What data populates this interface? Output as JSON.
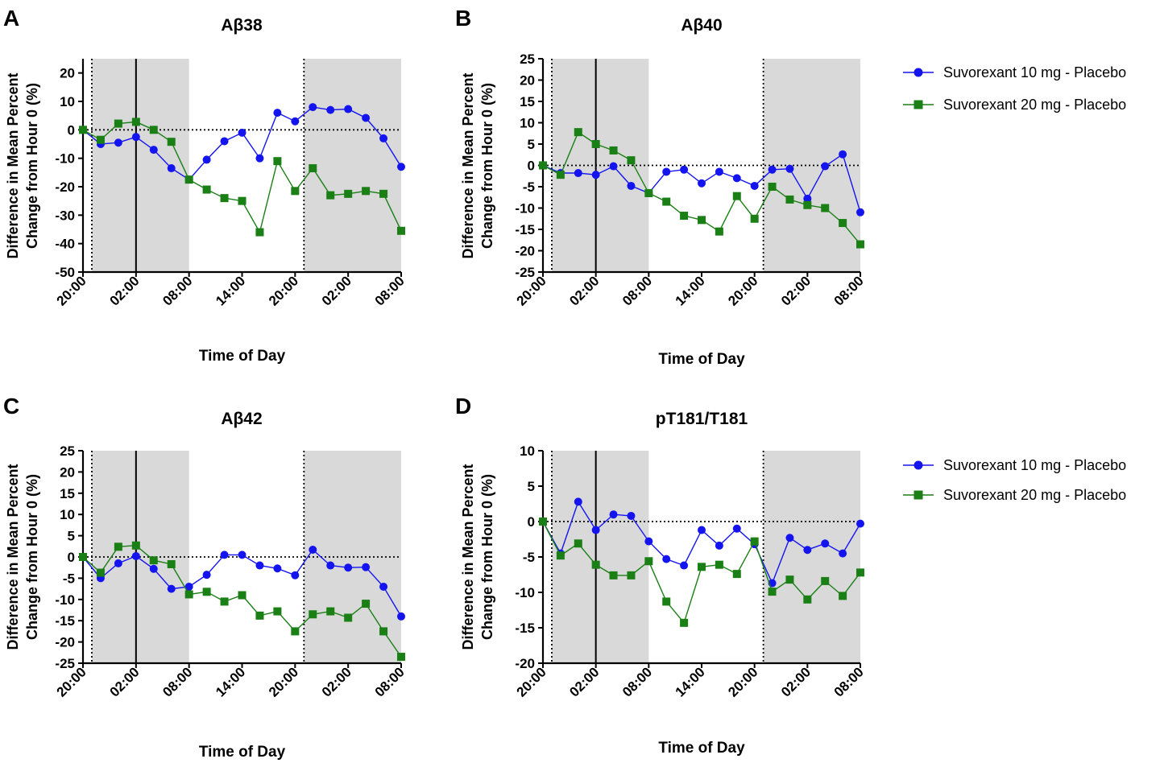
{
  "colors": {
    "series_10mg": "#1414f0",
    "series_20mg": "#1a7f14",
    "shade": "#d9d9d9"
  },
  "legend": [
    {
      "label": "Suvorexant 10 mg - Placebo",
      "marker": "circle"
    },
    {
      "label": "Suvorexant 20 mg - Placebo",
      "marker": "square"
    }
  ],
  "chart_data": [
    {
      "panel": "A",
      "type": "line",
      "title": "Aβ38",
      "ylabel_lines": [
        "Difference in Mean Percent",
        "Change from Hour 0 (%)"
      ],
      "xlabel": "Time of Day",
      "ylim": [
        -50,
        25
      ],
      "yticks": [
        20,
        10,
        0,
        -10,
        -20,
        -30,
        -40,
        -50
      ],
      "xlim": [
        0,
        36
      ],
      "xticks": [
        0,
        6,
        12,
        18,
        24,
        30,
        36
      ],
      "xtick_labels": [
        "20:00",
        "02:00",
        "08:00",
        "14:00",
        "20:00",
        "02:00",
        "08:00"
      ],
      "shaded_intervals": [
        [
          1,
          12
        ],
        [
          25,
          36
        ]
      ],
      "dotted_vlines": [
        1,
        25
      ],
      "solid_vlines": [
        6
      ],
      "reference_y": 0,
      "x": [
        0,
        2,
        4,
        6,
        8,
        10,
        12,
        14,
        16,
        18,
        20,
        22,
        24,
        26,
        28,
        30,
        32,
        34,
        36
      ],
      "series": [
        {
          "name": "Suvorexant 10 mg - Placebo",
          "values": [
            0,
            -5,
            -4.5,
            -2.5,
            -7,
            -13.5,
            -17.5,
            -10.5,
            -4,
            -1,
            -10,
            6,
            3,
            8,
            7,
            7.3,
            4.2,
            -3,
            -13
          ]
        },
        {
          "name": "Suvorexant 20 mg - Placebo",
          "values": [
            0,
            -3.5,
            2.2,
            2.8,
            0,
            -4.2,
            -17.5,
            -21,
            -24,
            -25,
            -36,
            -11,
            -21.5,
            -13.5,
            -23,
            -22.5,
            -21.5,
            -22.5,
            -35.5
          ]
        }
      ]
    },
    {
      "panel": "B",
      "type": "line",
      "title": "Aβ40",
      "ylabel_lines": [
        "Difference in Mean Percent",
        "Change from Hour 0 (%)"
      ],
      "xlabel": "Time of Day",
      "ylim": [
        -25,
        25
      ],
      "yticks": [
        25,
        20,
        15,
        10,
        5,
        0,
        -5,
        -10,
        -15,
        -20,
        -25
      ],
      "xlim": [
        0,
        36
      ],
      "xticks": [
        0,
        6,
        12,
        18,
        24,
        30,
        36
      ],
      "xtick_labels": [
        "20:00",
        "02:00",
        "08:00",
        "14:00",
        "20:00",
        "02:00",
        "08:00"
      ],
      "shaded_intervals": [
        [
          1,
          12
        ],
        [
          25,
          36
        ]
      ],
      "dotted_vlines": [
        1,
        25
      ],
      "solid_vlines": [
        6
      ],
      "reference_y": 0,
      "x": [
        0,
        2,
        4,
        6,
        8,
        10,
        12,
        14,
        16,
        18,
        20,
        22,
        24,
        26,
        28,
        30,
        32,
        34,
        36
      ],
      "series": [
        {
          "name": "Suvorexant 10 mg - Placebo",
          "values": [
            0,
            -1.8,
            -1.8,
            -2.2,
            -0.2,
            -4.8,
            -6.5,
            -1.5,
            -1,
            -4.2,
            -1.5,
            -3,
            -4.8,
            -1,
            -0.8,
            -7.8,
            -0.2,
            2.6,
            -11
          ]
        },
        {
          "name": "Suvorexant 20 mg - Placebo",
          "values": [
            0,
            -2.2,
            7.8,
            5,
            3.5,
            1.2,
            -6.5,
            -8.5,
            -11.8,
            -12.8,
            -15.5,
            -7.2,
            -12.5,
            -5,
            -8,
            -9.3,
            -10,
            -13.5,
            -18.5
          ]
        }
      ]
    },
    {
      "panel": "C",
      "type": "line",
      "title": "Aβ42",
      "ylabel_lines": [
        "Difference in Mean Percent",
        "Change from Hour 0 (%)"
      ],
      "xlabel": "Time of Day",
      "ylim": [
        -25,
        25
      ],
      "yticks": [
        25,
        20,
        15,
        10,
        5,
        0,
        -5,
        -10,
        -15,
        -20,
        -25
      ],
      "xlim": [
        0,
        36
      ],
      "xticks": [
        0,
        6,
        12,
        18,
        24,
        30,
        36
      ],
      "xtick_labels": [
        "20:00",
        "02:00",
        "08:00",
        "14:00",
        "20:00",
        "02:00",
        "08:00"
      ],
      "shaded_intervals": [
        [
          1,
          12
        ],
        [
          25,
          36
        ]
      ],
      "dotted_vlines": [
        1,
        25
      ],
      "solid_vlines": [
        6
      ],
      "reference_y": 0,
      "x": [
        0,
        2,
        4,
        6,
        8,
        10,
        12,
        14,
        16,
        18,
        20,
        22,
        24,
        26,
        28,
        30,
        32,
        34,
        36
      ],
      "series": [
        {
          "name": "Suvorexant 10 mg - Placebo",
          "values": [
            0,
            -5,
            -1.5,
            0.2,
            -2.8,
            -7.5,
            -7,
            -4.2,
            0.5,
            0.5,
            -2,
            -2.7,
            -4.3,
            1.7,
            -2,
            -2.5,
            -2.4,
            -7,
            -14
          ]
        },
        {
          "name": "Suvorexant 20 mg - Placebo",
          "values": [
            0,
            -3.7,
            2.4,
            2.7,
            -0.8,
            -1.7,
            -8.8,
            -8.2,
            -10.5,
            -9,
            -13.8,
            -12.8,
            -17.5,
            -13.5,
            -12.8,
            -14.3,
            -11,
            -17.5,
            -23.5
          ]
        }
      ]
    },
    {
      "panel": "D",
      "type": "line",
      "title": "pT181/T181",
      "ylabel_lines": [
        "Difference in Mean Percent",
        "Change from Hour 0 (%)"
      ],
      "xlabel": "Time of Day",
      "ylim": [
        -20,
        10
      ],
      "yticks": [
        10,
        5,
        0,
        -5,
        -10,
        -15,
        -20
      ],
      "xlim": [
        0,
        36
      ],
      "xticks": [
        0,
        6,
        12,
        18,
        24,
        30,
        36
      ],
      "xtick_labels": [
        "20:00",
        "02:00",
        "08:00",
        "14:00",
        "20:00",
        "02:00",
        "08:00"
      ],
      "shaded_intervals": [
        [
          1,
          12
        ],
        [
          25,
          36
        ]
      ],
      "dotted_vlines": [
        1,
        25
      ],
      "solid_vlines": [
        6
      ],
      "reference_y": 0,
      "x": [
        0,
        2,
        4,
        6,
        8,
        10,
        12,
        14,
        16,
        18,
        20,
        22,
        24,
        26,
        28,
        30,
        32,
        34,
        36
      ],
      "series": [
        {
          "name": "Suvorexant 10 mg - Placebo",
          "values": [
            0,
            -4.5,
            2.8,
            -1.2,
            1,
            0.8,
            -2.8,
            -5.3,
            -6.2,
            -1.2,
            -3.4,
            -1,
            -3.2,
            -8.7,
            -2.3,
            -4,
            -3.1,
            -4.5,
            -0.3
          ]
        },
        {
          "name": "Suvorexant 20 mg - Placebo",
          "values": [
            0,
            -4.8,
            -3.1,
            -6.1,
            -7.6,
            -7.6,
            -5.6,
            -11.3,
            -14.3,
            -6.4,
            -6.1,
            -7.4,
            -2.8,
            -9.9,
            -8.2,
            -11,
            -8.4,
            -10.5,
            -7.2
          ]
        }
      ]
    }
  ]
}
